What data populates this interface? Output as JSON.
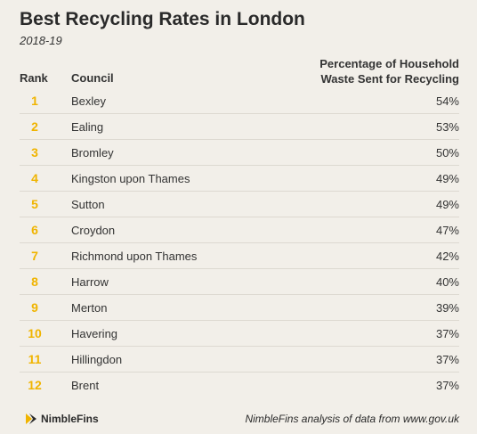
{
  "header": {
    "title": "Best Recycling Rates in London",
    "subtitle": "2018-19"
  },
  "table": {
    "columns": {
      "rank": "Rank",
      "council": "Council",
      "pct_line1": "Percentage of Household",
      "pct_line2": "Waste Sent for Recycling"
    },
    "rows": [
      {
        "rank": "1",
        "council": "Bexley",
        "pct": "54%"
      },
      {
        "rank": "2",
        "council": "Ealing",
        "pct": "53%"
      },
      {
        "rank": "3",
        "council": "Bromley",
        "pct": "50%"
      },
      {
        "rank": "4",
        "council": "Kingston upon Thames",
        "pct": "49%"
      },
      {
        "rank": "5",
        "council": "Sutton",
        "pct": "49%"
      },
      {
        "rank": "6",
        "council": "Croydon",
        "pct": "47%"
      },
      {
        "rank": "7",
        "council": "Richmond upon Thames",
        "pct": "42%"
      },
      {
        "rank": "8",
        "council": "Harrow",
        "pct": "40%"
      },
      {
        "rank": "9",
        "council": "Merton",
        "pct": "39%"
      },
      {
        "rank": "10",
        "council": "Havering",
        "pct": "37%"
      },
      {
        "rank": "11",
        "council": "Hillingdon",
        "pct": "37%"
      },
      {
        "rank": "12",
        "council": "Brent",
        "pct": "37%"
      }
    ]
  },
  "footer": {
    "logo_text": "NimbleFins",
    "logo_icon": "nimblefins-logo-icon",
    "source": "NimbleFins analysis of data from www.gov.uk"
  },
  "colors": {
    "background": "#f2efe9",
    "rank_accent": "#f0b400",
    "text": "#333333"
  }
}
